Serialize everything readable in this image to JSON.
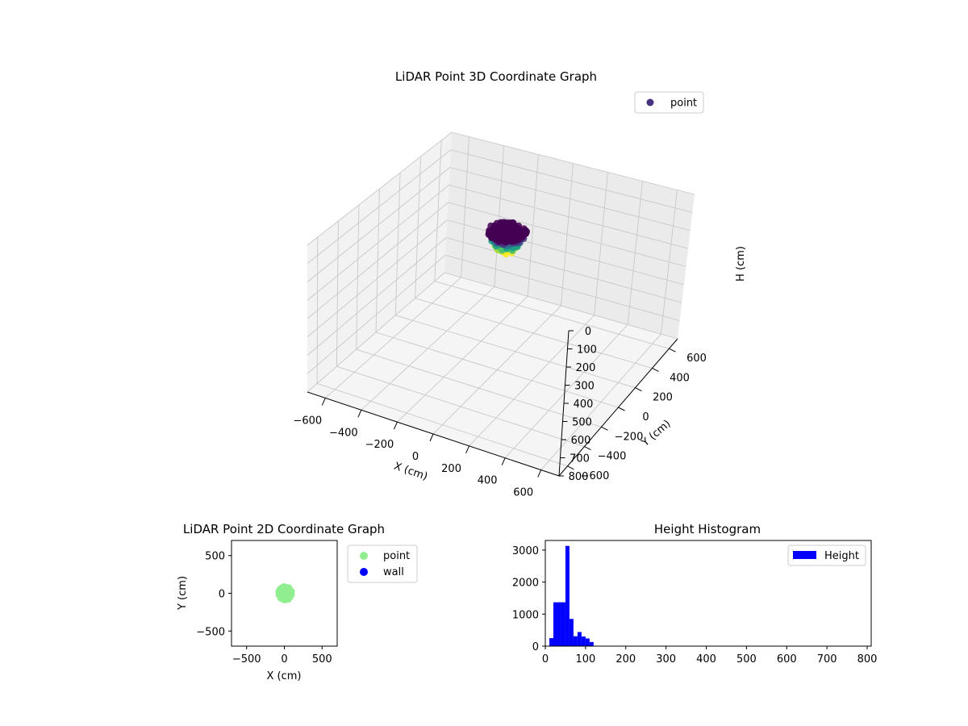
{
  "chart_data": [
    {
      "type": "scatter3d",
      "title": "LiDAR Point 3D Coordinate Graph",
      "xlabel": "X (cm)",
      "ylabel": "Y (cm)",
      "zlabel": "H (cm)",
      "xlim": [
        -700,
        700
      ],
      "ylim": [
        -700,
        700
      ],
      "zlim": [
        0,
        800
      ],
      "z_inverted": true,
      "xticks": [
        -600,
        -400,
        -200,
        0,
        200,
        400,
        600
      ],
      "yticks": [
        -600,
        -400,
        -200,
        0,
        200,
        400,
        600
      ],
      "zticks": [
        0,
        100,
        200,
        300,
        400,
        500,
        600,
        700,
        800
      ],
      "series": [
        {
          "name": "point",
          "color": "#46317e",
          "cluster": {
            "center": [
              10,
              0
            ],
            "radius": 100,
            "h_range": [
              30,
              130
            ]
          }
        }
      ],
      "colormap": "viridis",
      "legend": "top-right",
      "grid": true
    },
    {
      "type": "scatter",
      "title": "LiDAR Point 2D Coordinate Graph",
      "xlabel": "X (cm)",
      "ylabel": "Y (cm)",
      "xlim": [
        -700,
        700
      ],
      "ylim": [
        -700,
        700
      ],
      "xticks": [
        -500,
        0,
        500
      ],
      "yticks": [
        -500,
        0,
        500
      ],
      "series": [
        {
          "name": "point",
          "color": "#90ee90",
          "cluster": {
            "center": [
              10,
              0
            ],
            "radius": 100
          }
        },
        {
          "name": "wall",
          "color": "#0000ff",
          "points": []
        }
      ],
      "legend": "outside-right",
      "grid": false
    },
    {
      "type": "bar",
      "subtype": "histogram",
      "title": "Height Histogram",
      "xlabel": "",
      "ylabel": "",
      "xlim": [
        0,
        810
      ],
      "ylim": [
        0,
        3300
      ],
      "xticks": [
        0,
        100,
        200,
        300,
        400,
        500,
        600,
        700,
        800
      ],
      "yticks": [
        0,
        1000,
        2000,
        3000
      ],
      "bin_width": 10,
      "bins": [
        [
          10,
          20,
          250
        ],
        [
          20,
          30,
          1370
        ],
        [
          30,
          40,
          1370
        ],
        [
          40,
          50,
          1370
        ],
        [
          50,
          60,
          3130
        ],
        [
          60,
          70,
          850
        ],
        [
          70,
          80,
          310
        ],
        [
          80,
          90,
          440
        ],
        [
          90,
          100,
          300
        ],
        [
          100,
          110,
          240
        ],
        [
          110,
          120,
          130
        ]
      ],
      "series": [
        {
          "name": "Height",
          "color": "#0000ff"
        }
      ],
      "legend": "top-right",
      "grid": false
    }
  ]
}
